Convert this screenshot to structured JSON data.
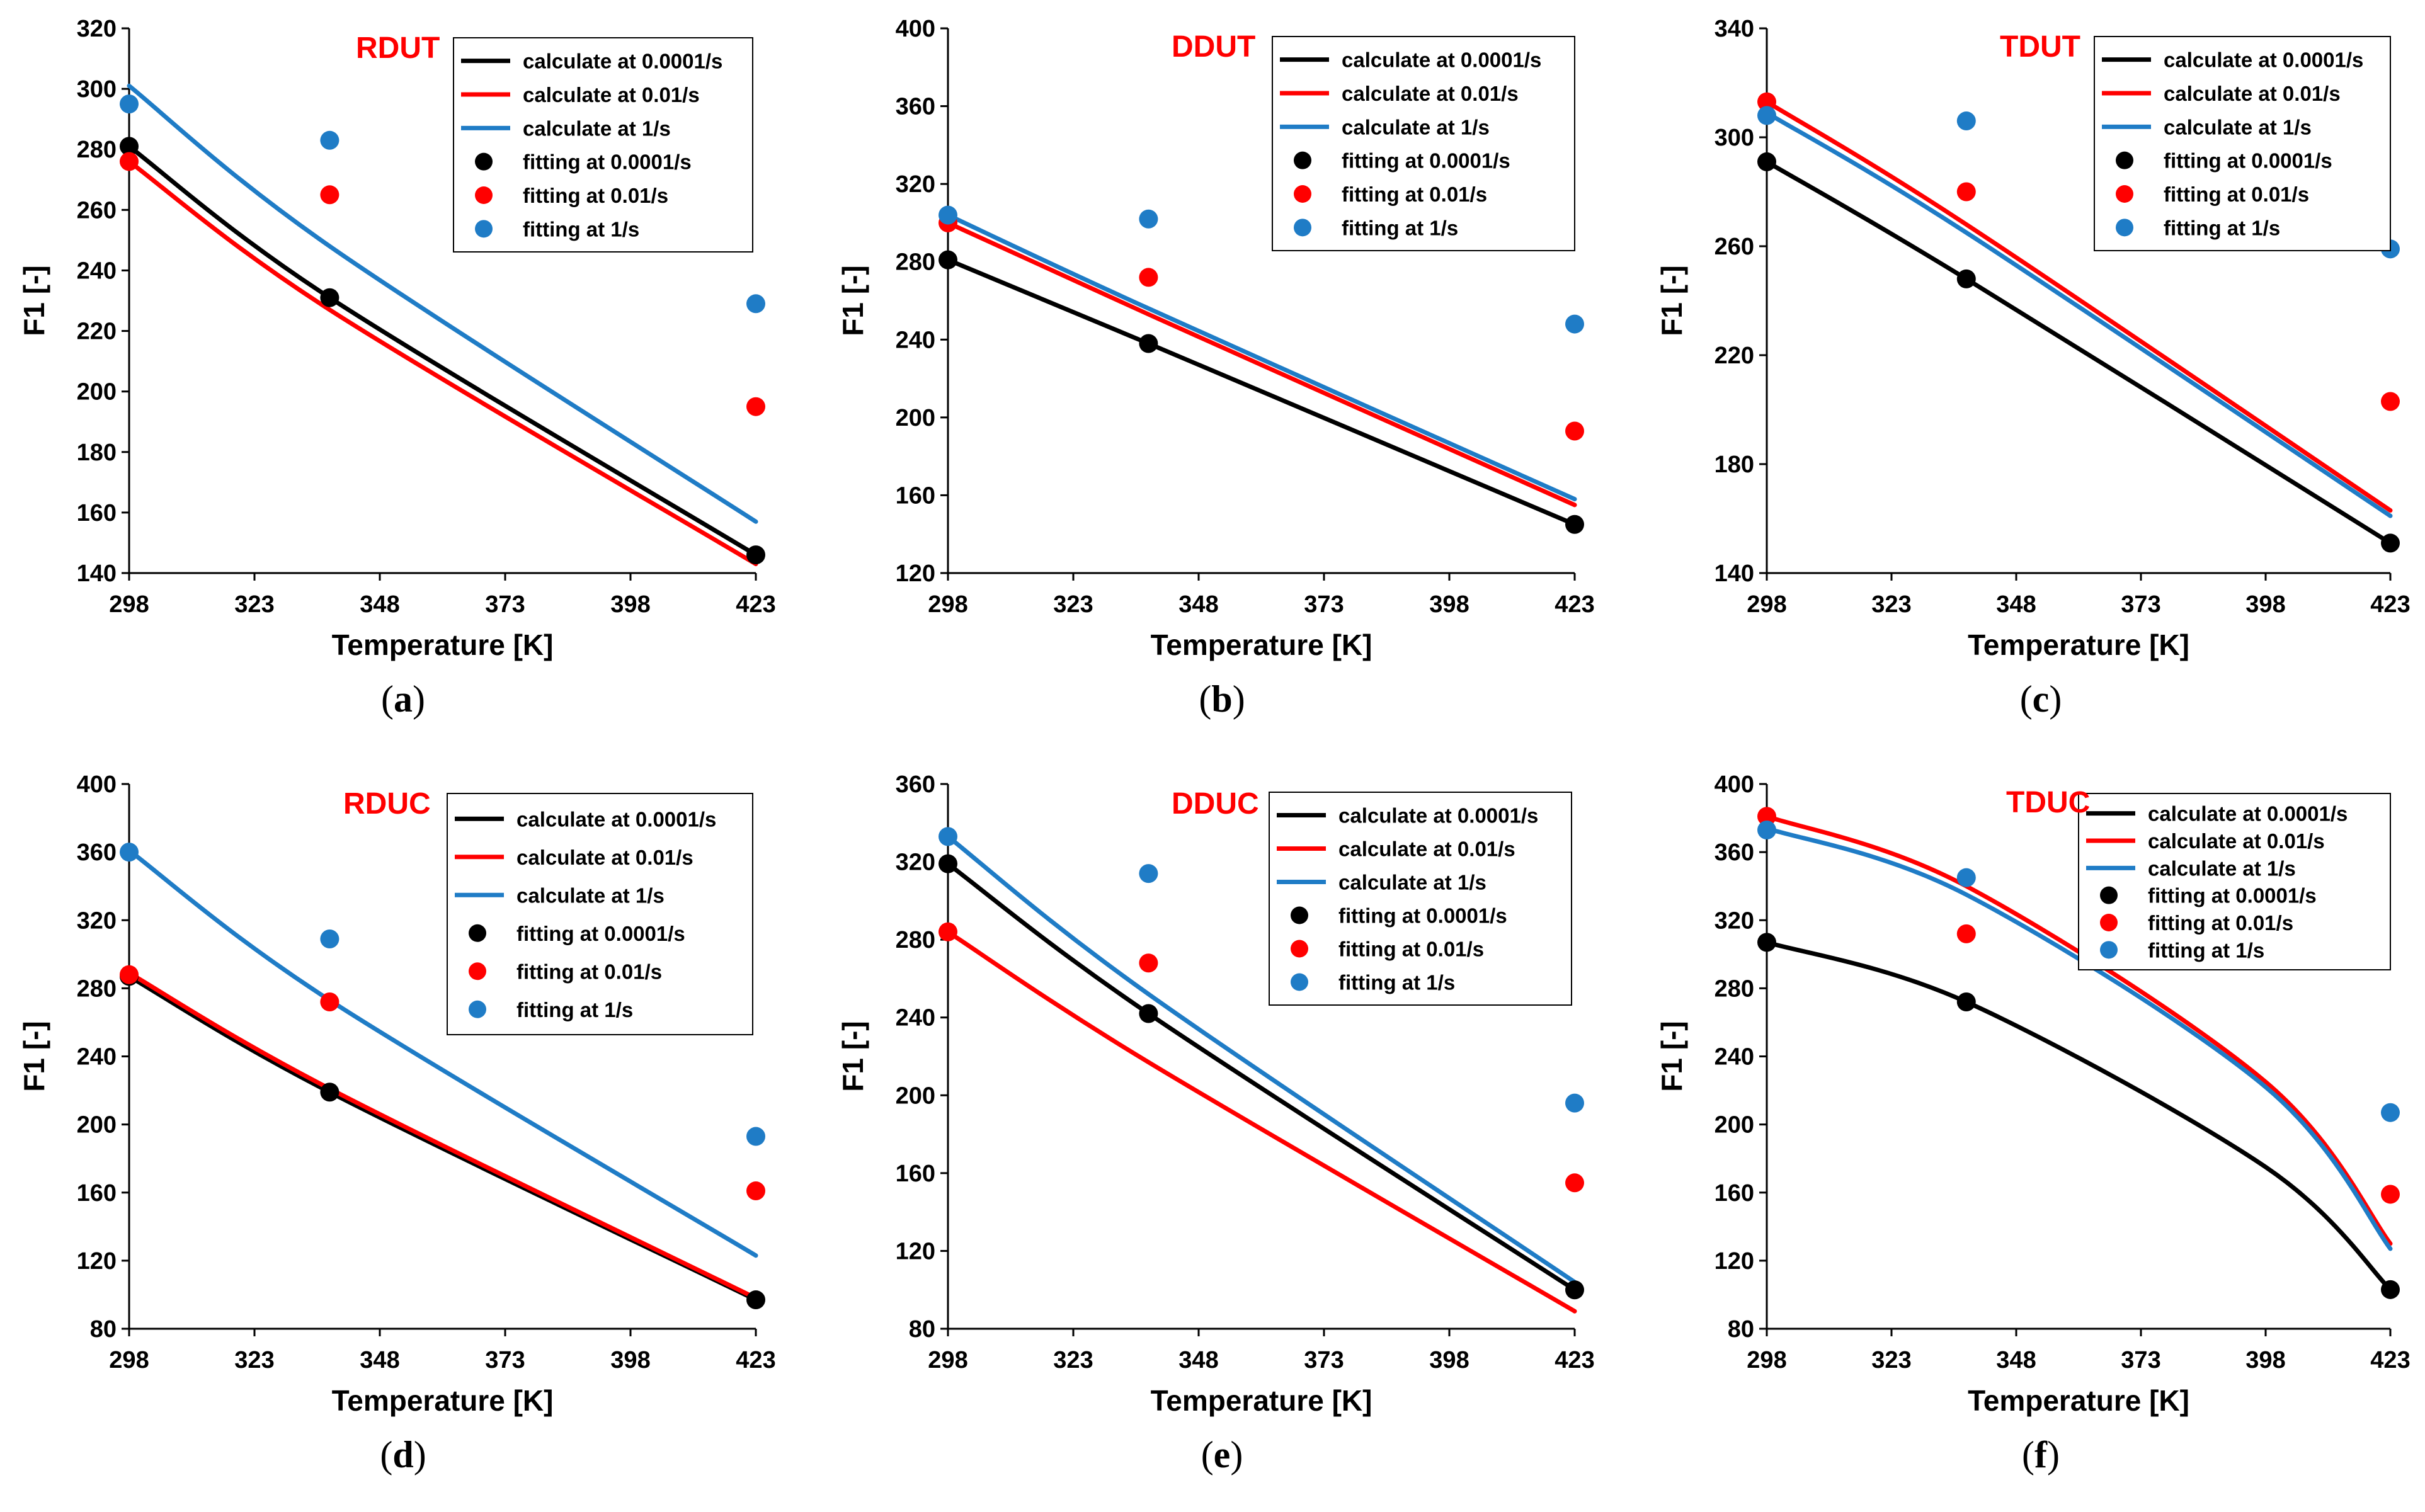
{
  "legend": {
    "calc_0001": "calculate at 0.0001/s",
    "calc_001": "calculate at 0.01/s",
    "calc_1": "calculate at 1/s",
    "fit_0001": "fitting at 0.0001/s",
    "fit_001": "fitting at 0.01/s",
    "fit_1": "fitting at 1/s"
  },
  "colors": {
    "black": "#000000",
    "red": "#ff0000",
    "blue": "#1f7cc6"
  },
  "chart_data": [
    {
      "id": "a",
      "type": "line",
      "title": "RDUT",
      "caption": "a",
      "xlabel": "Temperature [K]",
      "ylabel": "F1 [-]",
      "xlim": [
        298,
        423
      ],
      "xticks": [
        298,
        323,
        348,
        373,
        398,
        423
      ],
      "ylim": [
        140,
        320
      ],
      "yticks": [
        140,
        160,
        180,
        200,
        220,
        240,
        260,
        280,
        300,
        320
      ],
      "x": [
        298,
        338,
        423
      ],
      "series": [
        {
          "name": "calculate at 0.0001/s",
          "kind": "line",
          "color": "black",
          "values": [
            281,
            231,
            146
          ]
        },
        {
          "name": "calculate at 0.01/s",
          "kind": "line",
          "color": "red",
          "values": [
            276,
            227,
            143
          ]
        },
        {
          "name": "calculate at 1/s",
          "kind": "line",
          "color": "blue",
          "values": [
            301,
            248,
            157
          ]
        },
        {
          "name": "fitting at 0.0001/s",
          "kind": "point",
          "color": "black",
          "values": [
            281,
            231,
            146
          ]
        },
        {
          "name": "fitting at 0.01/s",
          "kind": "point",
          "color": "red",
          "values": [
            276,
            265,
            195
          ]
        },
        {
          "name": "fitting at 1/s",
          "kind": "point",
          "color": "blue",
          "values": [
            295,
            283,
            229
          ]
        }
      ]
    },
    {
      "id": "b",
      "type": "line",
      "title": "DDUT",
      "caption": "b",
      "xlabel": "Temperature [K]",
      "ylabel": "F1 [-]",
      "xlim": [
        298,
        423
      ],
      "xticks": [
        298,
        323,
        348,
        373,
        398,
        423
      ],
      "ylim": [
        120,
        400
      ],
      "yticks": [
        120,
        160,
        200,
        240,
        280,
        320,
        360,
        400
      ],
      "x": [
        298,
        338,
        423
      ],
      "series": [
        {
          "name": "calculate at 0.0001/s",
          "kind": "line",
          "color": "black",
          "values": [
            281,
            238,
            145
          ]
        },
        {
          "name": "calculate at 0.01/s",
          "kind": "line",
          "color": "red",
          "values": [
            300,
            253,
            155
          ]
        },
        {
          "name": "calculate at 1/s",
          "kind": "line",
          "color": "blue",
          "values": [
            304,
            256,
            158
          ]
        },
        {
          "name": "fitting at 0.0001/s",
          "kind": "point",
          "color": "black",
          "values": [
            281,
            238,
            145
          ]
        },
        {
          "name": "fitting at 0.01/s",
          "kind": "point",
          "color": "red",
          "values": [
            300,
            272,
            193
          ]
        },
        {
          "name": "fitting at 1/s",
          "kind": "point",
          "color": "blue",
          "values": [
            304,
            302,
            248
          ]
        }
      ]
    },
    {
      "id": "c",
      "type": "line",
      "title": "TDUT",
      "caption": "c",
      "xlabel": "Temperature [K]",
      "ylabel": "F1 [-]",
      "xlim": [
        298,
        423
      ],
      "xticks": [
        298,
        323,
        348,
        373,
        398,
        423
      ],
      "ylim": [
        140,
        340
      ],
      "yticks": [
        140,
        180,
        220,
        260,
        300,
        340
      ],
      "x": [
        298,
        338,
        423
      ],
      "series": [
        {
          "name": "calculate at 0.0001/s",
          "kind": "line",
          "color": "black",
          "values": [
            291,
            248,
            151
          ]
        },
        {
          "name": "calculate at 0.01/s",
          "kind": "line",
          "color": "red",
          "values": [
            313,
            268,
            163
          ]
        },
        {
          "name": "calculate at 1/s",
          "kind": "line",
          "color": "blue",
          "values": [
            309,
            265,
            161
          ]
        },
        {
          "name": "fitting at 0.0001/s",
          "kind": "point",
          "color": "black",
          "values": [
            291,
            248,
            151
          ]
        },
        {
          "name": "fitting at 0.01/s",
          "kind": "point",
          "color": "red",
          "values": [
            313,
            280,
            203
          ]
        },
        {
          "name": "fitting at 1/s",
          "kind": "point",
          "color": "blue",
          "values": [
            308,
            306,
            259
          ]
        }
      ]
    },
    {
      "id": "d",
      "type": "line",
      "title": "RDUC",
      "caption": "d",
      "xlabel": "Temperature [K]",
      "ylabel": "F1 [-]",
      "xlim": [
        298,
        423
      ],
      "xticks": [
        298,
        323,
        348,
        373,
        398,
        423
      ],
      "ylim": [
        80,
        400
      ],
      "yticks": [
        80,
        120,
        160,
        200,
        240,
        280,
        320,
        360,
        400
      ],
      "x": [
        298,
        338,
        423
      ],
      "series": [
        {
          "name": "calculate at 0.0001/s",
          "kind": "line",
          "color": "black",
          "values": [
            287,
            219,
            97
          ]
        },
        {
          "name": "calculate at 0.01/s",
          "kind": "line",
          "color": "red",
          "values": [
            289,
            221,
            98
          ]
        },
        {
          "name": "calculate at 1/s",
          "kind": "line",
          "color": "blue",
          "values": [
            361,
            273,
            123
          ]
        },
        {
          "name": "fitting at 0.0001/s",
          "kind": "point",
          "color": "black",
          "values": [
            287,
            219,
            97
          ]
        },
        {
          "name": "fitting at 0.01/s",
          "kind": "point",
          "color": "red",
          "values": [
            288,
            272,
            161
          ]
        },
        {
          "name": "fitting at 1/s",
          "kind": "point",
          "color": "blue",
          "values": [
            360,
            309,
            193
          ]
        }
      ]
    },
    {
      "id": "e",
      "type": "line",
      "title": "DDUC",
      "caption": "e",
      "xlabel": "Temperature [K]",
      "ylabel": "F1 [-]",
      "xlim": [
        298,
        423
      ],
      "xticks": [
        298,
        323,
        348,
        373,
        398,
        423
      ],
      "ylim": [
        80,
        360
      ],
      "yticks": [
        80,
        120,
        160,
        200,
        240,
        280,
        320,
        360
      ],
      "x": [
        298,
        338,
        423
      ],
      "series": [
        {
          "name": "calculate at 0.0001/s",
          "kind": "line",
          "color": "black",
          "values": [
            319,
            242,
            100
          ]
        },
        {
          "name": "calculate at 0.01/s",
          "kind": "line",
          "color": "red",
          "values": [
            284,
            217,
            89
          ]
        },
        {
          "name": "calculate at 1/s",
          "kind": "line",
          "color": "blue",
          "values": [
            333,
            252,
            104
          ]
        },
        {
          "name": "fitting at 0.0001/s",
          "kind": "point",
          "color": "black",
          "values": [
            319,
            242,
            100
          ]
        },
        {
          "name": "fitting at 0.01/s",
          "kind": "point",
          "color": "red",
          "values": [
            284,
            268,
            155
          ]
        },
        {
          "name": "fitting at 1/s",
          "kind": "point",
          "color": "blue",
          "values": [
            333,
            314,
            196
          ]
        }
      ]
    },
    {
      "id": "f",
      "type": "line",
      "title": "TDUC",
      "caption": "f",
      "xlabel": "Temperature [K]",
      "ylabel": "F1 [-]",
      "xlim": [
        298,
        423
      ],
      "xticks": [
        298,
        323,
        348,
        373,
        398,
        423
      ],
      "ylim": [
        80,
        400
      ],
      "yticks": [
        80,
        120,
        160,
        200,
        240,
        280,
        320,
        360,
        400
      ],
      "x": [
        298,
        338,
        398,
        423
      ],
      "series": [
        {
          "name": "calculate at 0.0001/s",
          "kind": "line",
          "color": "black",
          "values": [
            307,
            272,
            175,
            103
          ]
        },
        {
          "name": "calculate at 0.01/s",
          "kind": "line",
          "color": "red",
          "values": [
            381,
            340,
            225,
            130
          ]
        },
        {
          "name": "calculate at 1/s",
          "kind": "line",
          "color": "blue",
          "values": [
            374,
            335,
            222,
            127
          ]
        },
        {
          "name": "fitting at 0.0001/s",
          "kind": "point",
          "color": "black",
          "values": [
            307,
            272,
            null,
            103
          ]
        },
        {
          "name": "fitting at 0.01/s",
          "kind": "point",
          "color": "red",
          "values": [
            381,
            312,
            null,
            159
          ]
        },
        {
          "name": "fitting at 1/s",
          "kind": "point",
          "color": "blue",
          "values": [
            373,
            345,
            null,
            207
          ]
        }
      ]
    }
  ]
}
